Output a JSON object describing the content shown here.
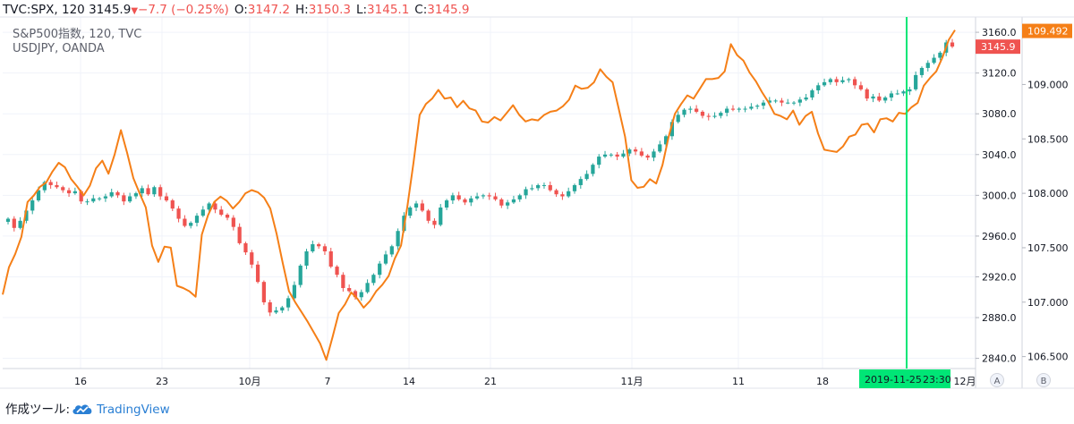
{
  "header": {
    "symbol": "TVC:SPX, 120",
    "last": "3145.9",
    "change": "−7.7 (−0.25%)",
    "o_label": "O:",
    "o": "3147.2",
    "h_label": "H:",
    "h": "3150.3",
    "l_label": "L:",
    "l": "3145.1",
    "c_label": "C:",
    "c": "3145.9"
  },
  "legend": {
    "line1": "S&P500指数, 120, TVC",
    "line2": "USDJPY, OANDA"
  },
  "footer": {
    "made_with": "作成ツール:",
    "brand": "TradingView"
  },
  "colors": {
    "up": "#26a69a",
    "down": "#ef5350",
    "usdjpy": "#f57f17",
    "cursor": "#00e676",
    "grid": "#f0f3fa"
  },
  "icons": [
    "down-triangle-icon",
    "tradingview-cloud-icon"
  ],
  "chart_data": {
    "type": "line",
    "left_axis": {
      "ticks": [
        "3160.0",
        "3120.0",
        "3080.0",
        "3040.0",
        "3000.0",
        "2960.0",
        "2920.0",
        "2880.0",
        "2840.0"
      ],
      "range": [
        2830,
        3175
      ]
    },
    "right_axis": {
      "ticks": [
        "109.000",
        "108.500",
        "108.000",
        "107.500",
        "107.000",
        "106.500"
      ],
      "range": [
        106.39,
        109.62
      ]
    },
    "x_ticks": [
      "16",
      "23",
      "10月",
      "7",
      "14",
      "21",
      "11月",
      "11",
      "18",
      "12月"
    ],
    "scale_buttons": [
      "A",
      "B"
    ],
    "price_labels": {
      "spx": "3145.9",
      "usdjpy": "109.492"
    },
    "crosshair": {
      "date": "2019-11-25",
      "time": "23:30"
    },
    "series": [
      {
        "name": "S&P500指数",
        "kind": "candlestick",
        "close": [
          2977,
          2968,
          2975,
          2985,
          2995,
          3005,
          3013,
          3010,
          3008,
          3005,
          3002,
          3004,
          2994,
          2994,
          2997,
          2997,
          2999,
          3003,
          3000,
          2994,
          2999,
          3002,
          3007,
          3001,
          3008,
          2999,
          2995,
          2987,
          2977,
          2970,
          2973,
          2980,
          2986,
          2992,
          2986,
          2981,
          2978,
          2969,
          2953,
          2944,
          2932,
          2915,
          2895,
          2885,
          2887,
          2890,
          2899,
          2912,
          2931,
          2945,
          2952,
          2950,
          2945,
          2930,
          2922,
          2909,
          2906,
          2900,
          2905,
          2914,
          2922,
          2933,
          2942,
          2950,
          2965,
          2980,
          2988,
          2992,
          2985,
          2975,
          2971,
          2988,
          2995,
          3000,
          2996,
          2993,
          2997,
          2999,
          3000,
          2999,
          2996,
          2990,
          2993,
          2996,
          3000,
          3006,
          3007,
          3010,
          3010,
          3005,
          3001,
          2999,
          3004,
          3010,
          3016,
          3021,
          3030,
          3038,
          3040,
          3040,
          3038,
          3041,
          3045,
          3043,
          3039,
          3037,
          3043,
          3050,
          3058,
          3072,
          3079,
          3084,
          3085,
          3082,
          3078,
          3077,
          3078,
          3081,
          3085,
          3084,
          3085,
          3085,
          3087,
          3088,
          3091,
          3093,
          3093,
          3091,
          3091,
          3091,
          3094,
          3096,
          3103,
          3108,
          3111,
          3114,
          3111,
          3113,
          3114,
          3108,
          3104,
          3095,
          3097,
          3093,
          3096,
          3100,
          3100,
          3102,
          3104,
          3118,
          3125,
          3130,
          3135,
          3140,
          3150,
          3146
        ]
      },
      {
        "name": "USDJPY",
        "values": [
          107.07,
          107.32,
          107.44,
          107.6,
          107.92,
          107.98,
          108.06,
          108.1,
          108.2,
          108.28,
          108.24,
          108.13,
          108.06,
          107.98,
          108.07,
          108.23,
          108.3,
          108.18,
          108.36,
          108.58,
          108.37,
          108.14,
          108.0,
          107.87,
          107.52,
          107.37,
          107.51,
          107.5,
          107.15,
          107.13,
          107.1,
          107.05,
          107.62,
          107.8,
          107.92,
          107.97,
          107.93,
          107.86,
          107.92,
          108.0,
          108.03,
          108.01,
          107.96,
          107.86,
          107.63,
          107.36,
          107.1,
          107.0,
          106.91,
          106.82,
          106.72,
          106.62,
          106.47,
          106.68,
          106.9,
          106.98,
          107.09,
          107.03,
          106.95,
          107.01,
          107.1,
          107.16,
          107.24,
          107.4,
          107.52,
          107.87,
          108.28,
          108.72,
          108.82,
          108.87,
          108.95,
          108.87,
          108.88,
          108.79,
          108.85,
          108.78,
          108.76,
          108.66,
          108.65,
          108.7,
          108.67,
          108.74,
          108.81,
          108.72,
          108.66,
          108.68,
          108.67,
          108.72,
          108.75,
          108.76,
          108.8,
          108.86,
          108.99,
          108.96,
          108.97,
          109.02,
          109.14,
          109.07,
          109.02,
          108.77,
          108.52,
          108.12,
          108.05,
          108.06,
          108.13,
          108.09,
          108.26,
          108.52,
          108.73,
          108.82,
          108.9,
          108.87,
          108.96,
          109.05,
          109.05,
          109.06,
          109.12,
          109.37,
          109.27,
          109.22,
          109.11,
          109.03,
          108.93,
          108.84,
          108.73,
          108.71,
          108.68,
          108.76,
          108.63,
          108.71,
          108.75,
          108.55,
          108.4,
          108.39,
          108.38,
          108.43,
          108.52,
          108.54,
          108.63,
          108.64,
          108.56,
          108.68,
          108.69,
          108.66,
          108.74,
          108.73,
          108.79,
          108.83,
          108.99,
          109.06,
          109.12,
          109.25,
          109.41,
          109.5
        ]
      }
    ]
  }
}
